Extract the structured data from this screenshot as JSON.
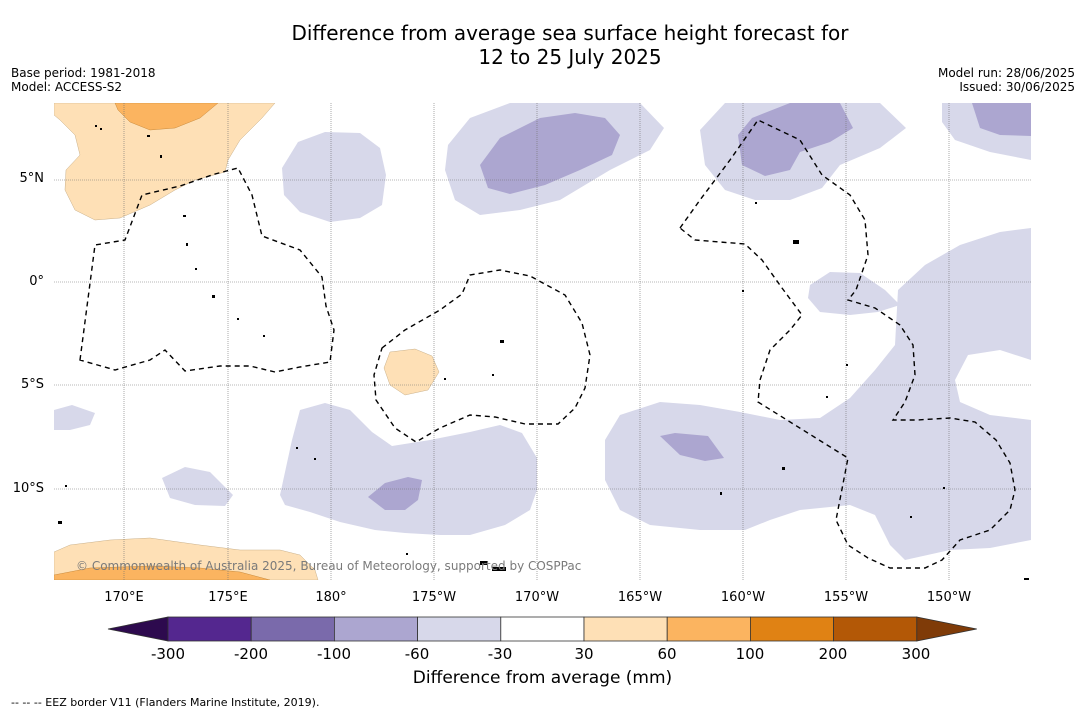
{
  "title_line1": "Difference from average sea surface height forecast for",
  "title_line2": "12 to 25 July 2025",
  "meta_left": {
    "base_period": "Base period: 1981-2018",
    "model": "Model: ACCESS-S2"
  },
  "meta_right": {
    "model_run": "Model run: 28/06/2025",
    "issued": "Issued: 30/06/2025"
  },
  "lat_labels": [
    "5°N",
    "0°",
    "5°S",
    "10°S"
  ],
  "lon_labels": [
    "170°E",
    "175°E",
    "180°",
    "175°W",
    "170°W",
    "165°W",
    "160°W",
    "155°W",
    "150°W"
  ],
  "copyright": "© Commonwealth of Australia 2025, Bureau of Meteorology, supported by COSPPac",
  "colorbar": {
    "ticks": [
      "-300",
      "-200",
      "-100",
      "-60",
      "-30",
      "30",
      "60",
      "100",
      "200",
      "300"
    ],
    "colors": [
      "#2d0a4e",
      "#54278f",
      "#7a6aab",
      "#aca6d0",
      "#d7d8ea",
      "#ffffff",
      "#fee0b6",
      "#fbb460",
      "#e08214",
      "#b35806",
      "#7f3b08"
    ],
    "title": "Difference from average (mm)"
  },
  "footer": "--  --  -- EEZ border V11 (Flanders Marine Institute, 2019).",
  "colors": {
    "light_purple": "#d7d8ea",
    "mid_purple": "#aca6d0",
    "light_orange": "#fee0b6",
    "mid_orange": "#fbb460"
  }
}
